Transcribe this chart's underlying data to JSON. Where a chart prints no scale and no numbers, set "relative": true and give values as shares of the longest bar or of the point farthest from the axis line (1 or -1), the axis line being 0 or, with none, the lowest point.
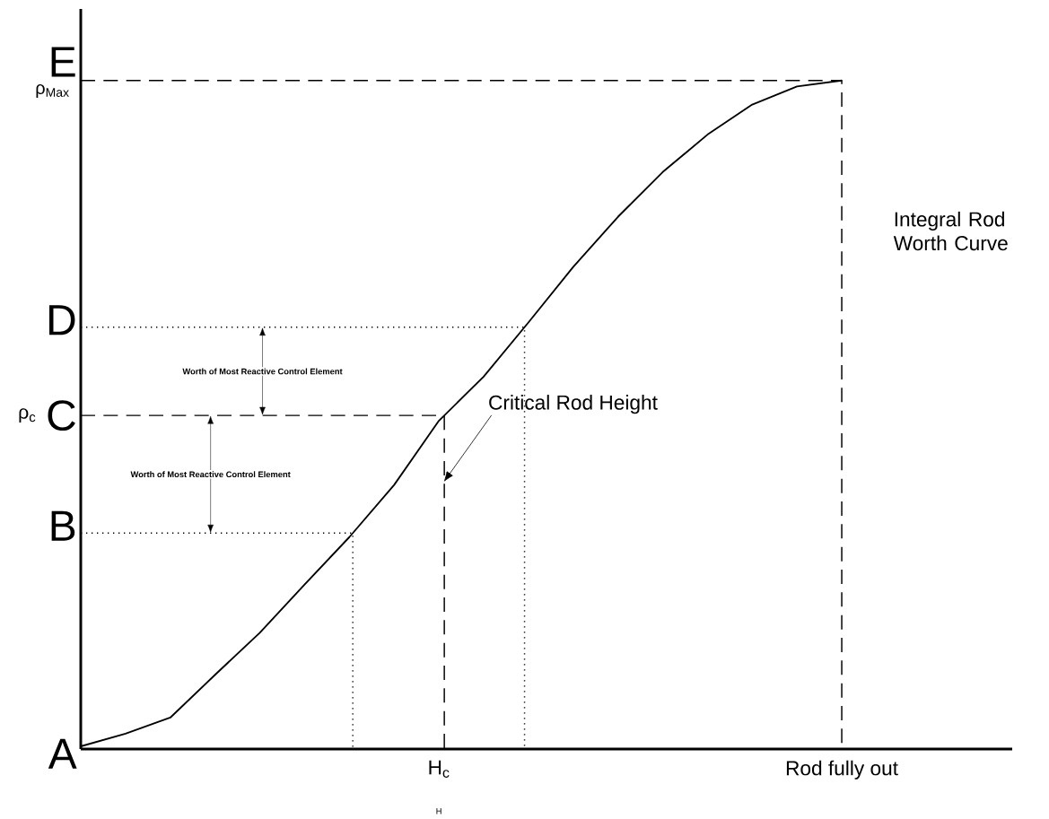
{
  "chart_data": {
    "type": "line",
    "relative": true,
    "xlabel": "H",
    "categories": [
      null,
      null,
      null,
      null,
      null,
      null,
      null,
      null,
      "H$_{c}$",
      null,
      null,
      null,
      null,
      null,
      null,
      null,
      null,
      "Rod fully out"
    ],
    "series": [
      {
        "color": "#000000",
        "line_style": "solid",
        "values": [
          0.004,
          0.023,
          0.047,
          0.111,
          0.174,
          0.246,
          0.317,
          0.395,
          0.491,
          0.557,
          0.638,
          0.721,
          0.796,
          0.863,
          0.919,
          0.964,
          0.991,
          1.0
        ]
      }
    ],
    "ref_lines": [
      {
        "axis": "y",
        "value": 0.323,
        "label": "B",
        "line_style": "dotted",
        "color": "#000000"
      },
      {
        "axis": "y",
        "value": 0.499,
        "label": "C",
        "line_style": "dashed",
        "color": "#000000"
      },
      {
        "axis": "y",
        "value": 0.631,
        "label": "D",
        "line_style": "dotted",
        "color": "#000000"
      },
      {
        "axis": "y",
        "value": 1.0,
        "label": "E",
        "line_style": "dashed",
        "color": "#000000"
      }
    ],
    "annotations": [
      "ρ$_{Max}$",
      "ρ$_{c}$",
      "A",
      "Integral Rod Worth Curve",
      "Critical Rod Height",
      "Worth of Most Reactive Control Element",
      "Worth of Most Reactive Control Element"
    ]
  }
}
